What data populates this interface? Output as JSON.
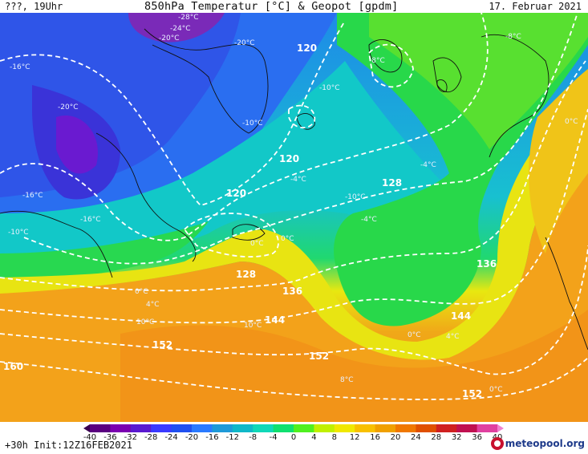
{
  "header": {
    "left": "???, 19Uhr",
    "title": "850hPa Temperatur [°C] & Geopot [gpdm]",
    "date": "17. Februar 2021"
  },
  "footer": {
    "run": "+30h Init:12Z16FEB2021",
    "brand": "meteopool.org"
  },
  "legend": {
    "ticks": [
      "-40",
      "-36",
      "-32",
      "-28",
      "-24",
      "-20",
      "-16",
      "-12",
      "-8",
      "-4",
      "0",
      "4",
      "8",
      "12",
      "16",
      "20",
      "24",
      "28",
      "32",
      "36",
      "40"
    ],
    "colors": [
      "#3a0050",
      "#5a0080",
      "#7a00b0",
      "#5a1ad0",
      "#3a3aff",
      "#2050f0",
      "#2a7aff",
      "#1e9ad8",
      "#10b8c8",
      "#10d8b8",
      "#10e070",
      "#50f020",
      "#c0f000",
      "#f0e800",
      "#f8c000",
      "#f0a000",
      "#f07800",
      "#e05000",
      "#d02020",
      "#c01050",
      "#e040a0",
      "#f080d0"
    ],
    "accent_brand": "#c8102e"
  },
  "map": {
    "contour_labels": [
      "120",
      "120",
      "120",
      "128",
      "128",
      "136",
      "136",
      "144",
      "144",
      "152",
      "152",
      "152",
      "160"
    ],
    "isotherm_labels": [
      "-28°C",
      "-24°C",
      "-20°C",
      "-20°C",
      "-16°C",
      "-16°C",
      "-16°C",
      "-20°C",
      "-10°C",
      "-10°C",
      "-10°C",
      "-8°C",
      "-8°C",
      "-4°C",
      "-4°C",
      "-4°C",
      "0°C",
      "0°C",
      "0°C",
      "0°C",
      "0°C",
      "4°C",
      "4°C",
      "8°C",
      "10°C",
      "10°C",
      "-10°C",
      "0°C"
    ]
  }
}
